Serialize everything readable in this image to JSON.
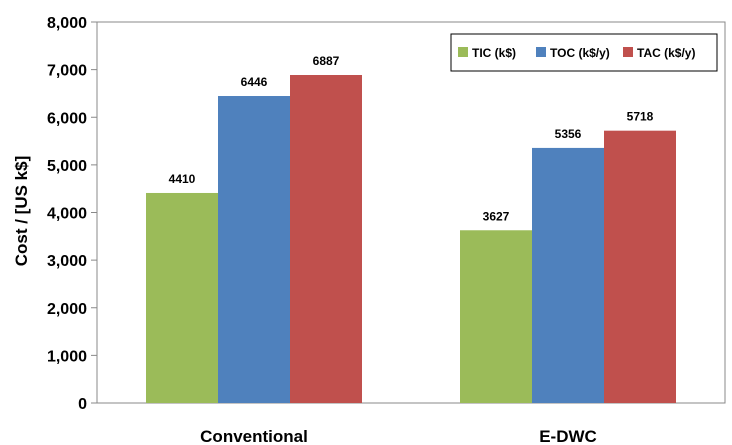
{
  "chart_data": {
    "type": "bar",
    "categories": [
      "Conventional",
      "E-DWC"
    ],
    "series": [
      {
        "name": "TIC (k$)",
        "values": [
          4410,
          3627
        ],
        "color": "#9bbb59"
      },
      {
        "name": "TOC (k$/y)",
        "values": [
          6446,
          5356
        ],
        "color": "#4f81bd"
      },
      {
        "name": "TAC (k$/y)",
        "values": [
          6887,
          5718
        ],
        "color": "#c0504d"
      }
    ],
    "title": "",
    "xlabel": "",
    "ylabel": "Cost / [US k$]",
    "ylim": [
      0,
      8000
    ],
    "yticks": [
      0,
      1000,
      2000,
      3000,
      4000,
      5000,
      6000,
      7000,
      8000
    ],
    "ytick_labels": [
      "0",
      "1,000",
      "2,000",
      "3,000",
      "4,000",
      "5,000",
      "6,000",
      "7,000",
      "8,000"
    ],
    "grid": false,
    "legend_position": "top-right",
    "data_labels": true
  }
}
